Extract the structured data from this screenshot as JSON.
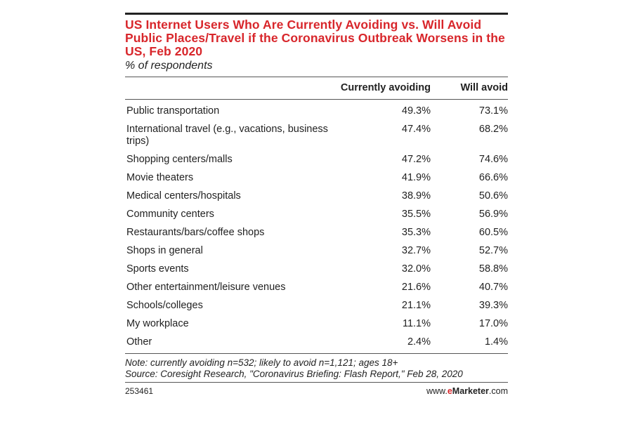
{
  "title": "US Internet Users Who Are Currently Avoiding vs. Will Avoid Public Places/Travel if the Coronavirus Outbreak Worsens in the US, Feb 2020",
  "subtitle": "% of respondents",
  "note": "Note: currently avoiding n=532; likely to avoid n=1,121; ages 18+",
  "source": "Source: Coresight Research, \"Coronavirus Briefing: Flash Report,\" Feb 28, 2020",
  "chart_id": "253461",
  "brand": {
    "prefix": "www.",
    "e": "e",
    "name": "Marketer",
    "suffix": ".com"
  },
  "colors": {
    "title": "#d8262b",
    "text": "#222222",
    "rule": "#555555"
  },
  "chart_data": {
    "type": "table",
    "title": "US Internet Users Who Are Currently Avoiding vs. Will Avoid Public Places/Travel if the Coronavirus Outbreak Worsens in the US, Feb 2020",
    "subtitle": "% of respondents",
    "columns": [
      "",
      "Currently avoiding",
      "Will avoid"
    ],
    "rows": [
      {
        "label": "Public transportation",
        "currently_avoiding": "49.3%",
        "will_avoid": "73.1%"
      },
      {
        "label": "International travel (e.g., vacations, business trips)",
        "currently_avoiding": "47.4%",
        "will_avoid": "68.2%"
      },
      {
        "label": "Shopping centers/malls",
        "currently_avoiding": "47.2%",
        "will_avoid": "74.6%"
      },
      {
        "label": "Movie theaters",
        "currently_avoiding": "41.9%",
        "will_avoid": "66.6%"
      },
      {
        "label": "Medical centers/hospitals",
        "currently_avoiding": "38.9%",
        "will_avoid": "50.6%"
      },
      {
        "label": "Community centers",
        "currently_avoiding": "35.5%",
        "will_avoid": "56.9%"
      },
      {
        "label": "Restaurants/bars/coffee shops",
        "currently_avoiding": "35.3%",
        "will_avoid": "60.5%"
      },
      {
        "label": "Shops in general",
        "currently_avoiding": "32.7%",
        "will_avoid": "52.7%"
      },
      {
        "label": "Sports events",
        "currently_avoiding": "32.0%",
        "will_avoid": "58.8%"
      },
      {
        "label": "Other entertainment/leisure venues",
        "currently_avoiding": "21.6%",
        "will_avoid": "40.7%"
      },
      {
        "label": "Schools/colleges",
        "currently_avoiding": "21.1%",
        "will_avoid": "39.3%"
      },
      {
        "label": "My workplace",
        "currently_avoiding": "11.1%",
        "will_avoid": "17.0%"
      },
      {
        "label": "Other",
        "currently_avoiding": "2.4%",
        "will_avoid": "1.4%"
      }
    ]
  }
}
